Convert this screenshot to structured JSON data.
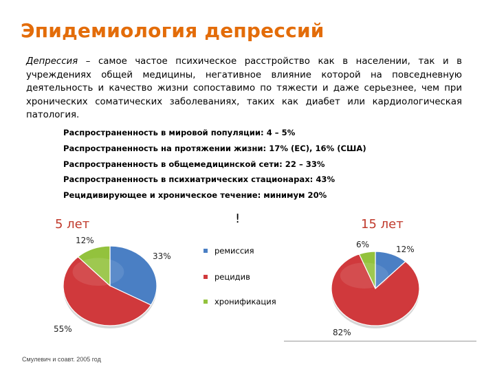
{
  "title": "Эпидемиология депрессий",
  "intro": {
    "term": "Депрессия",
    "text": " – самое частое психическое расстройство как в населении, так и в учреждениях общей медицины, негативное влияние которой на повседневную деятельность и качество жизни сопоставимо по тяжести и даже серьезнее, чем при хронических соматических заболеваниях, таких как диабет или кардиологическая патология."
  },
  "facts": [
    "Распространенность в мировой популяции: 4 – 5%",
    "Распространенность на протяжении жизни: 17% (ЕС), 16% (США)",
    "Распространенность в общемедицинской сети: 22 – 33%",
    "Распространенность в психиатрических стационарах: 43%",
    "Рецидивирующее и хроническое течение: минимум 20%"
  ],
  "exclamation": "!",
  "colors": {
    "title": "#e36c09",
    "remission": "#4a7fc4",
    "relapse": "#d0393c",
    "chronic": "#93c23d"
  },
  "legend": [
    {
      "label": "ремиссия",
      "color": "#4a7fc4"
    },
    {
      "label": "рецидив",
      "color": "#d0393c"
    },
    {
      "label": "хронификация",
      "color": "#93c23d"
    }
  ],
  "chart_data": [
    {
      "type": "pie",
      "title": "5 лет",
      "categories": [
        "ремиссия",
        "рецидив",
        "хронификация"
      ],
      "values": [
        33,
        55,
        12
      ],
      "labels": [
        "33%",
        "55%",
        "12%"
      ]
    },
    {
      "type": "pie",
      "title": "15 лет",
      "categories": [
        "ремиссия",
        "рецидив",
        "хронификация"
      ],
      "values": [
        12,
        82,
        6
      ],
      "labels": [
        "12%",
        "82%",
        "6%"
      ]
    }
  ],
  "source": "Смулевич и соавт. 2005 год"
}
